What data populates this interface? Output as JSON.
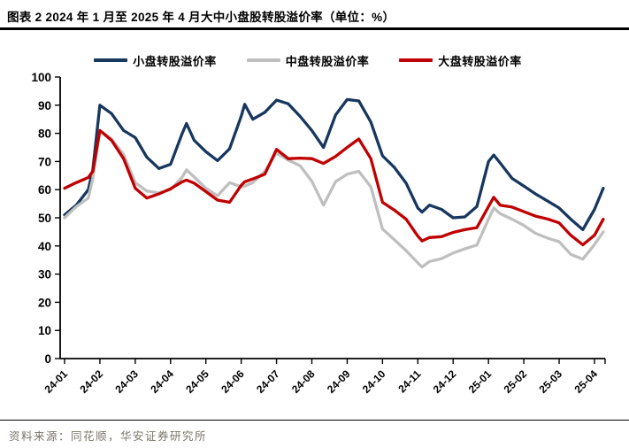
{
  "header": {
    "title": "图表 2 2024 年 1 月至 2025 年 4 月大中小盘股转股溢价率（单位：%）"
  },
  "footer": {
    "source": "资料来源：同花顺，华安证券研究所"
  },
  "chart_data": {
    "type": "line",
    "title": "2024年1月至2025年4月大中小盘股转股溢价率",
    "unit": "%",
    "grid": false,
    "legend_position": "top",
    "ylim": [
      0,
      100
    ],
    "ytick_step": 10,
    "categories": [
      "24-01",
      "24-02",
      "24-03",
      "24-04",
      "24-05",
      "24-06",
      "24-07",
      "24-08",
      "24-09",
      "24-10",
      "24-11",
      "24-12",
      "25-01",
      "25-02",
      "25-03",
      "25-04"
    ],
    "x_months": [
      0,
      0.33,
      0.67,
      0.8,
      1,
      1.33,
      1.67,
      2,
      2.33,
      2.67,
      3,
      3.33,
      3.45,
      3.67,
      4,
      4.33,
      4.67,
      5,
      5.1,
      5.33,
      5.67,
      6,
      6.33,
      6.67,
      7,
      7.33,
      7.67,
      8,
      8.33,
      8.67,
      9,
      9.33,
      9.67,
      10,
      10.12,
      10.33,
      10.67,
      11,
      11.33,
      11.67,
      12,
      12.15,
      12.33,
      12.67,
      13,
      13.33,
      13.67,
      14,
      14.33,
      14.67,
      15,
      15.25
    ],
    "series": [
      {
        "name": "小盘转股溢价率",
        "color": "#17375e",
        "values": [
          51,
          54.5,
          60,
          67,
          90,
          87,
          81,
          78.5,
          71.5,
          67.5,
          69,
          80,
          83.5,
          77.5,
          73.5,
          70.3,
          74.5,
          86,
          90.3,
          85,
          87.5,
          91.8,
          90.5,
          86,
          81,
          75,
          86.5,
          92,
          91.5,
          84,
          72,
          68,
          62.3,
          53.5,
          52,
          54.5,
          53,
          50,
          50.3,
          54,
          70,
          72.3,
          69.5,
          64,
          61.3,
          58.5,
          56,
          53.5,
          49.5,
          45.8,
          53,
          60.5
        ]
      },
      {
        "name": "中盘转股溢价率",
        "color": "#bfbfbf",
        "values": [
          50,
          54,
          57,
          64,
          81,
          78,
          72.5,
          62.5,
          59.5,
          58.8,
          60,
          64.5,
          67,
          64.5,
          60.5,
          57.8,
          62.5,
          61,
          61.3,
          62.5,
          66.5,
          73,
          70.5,
          68.5,
          63,
          54.5,
          62.8,
          65.5,
          66.5,
          61,
          46,
          42.3,
          38.3,
          34,
          32.5,
          34.5,
          35.5,
          37.5,
          39,
          40.3,
          49.5,
          53.5,
          51.5,
          49.5,
          47.3,
          44.5,
          42.8,
          41.5,
          37,
          35.3,
          40.5,
          45
        ]
      },
      {
        "name": "大盘转股溢价率",
        "color": "#c00000",
        "values": [
          60.5,
          62.5,
          64.3,
          66.5,
          81,
          77.5,
          71,
          60.5,
          57,
          58.5,
          60.3,
          62.8,
          63.4,
          62.3,
          59.3,
          56.3,
          55.5,
          61.5,
          62.8,
          63.8,
          65.5,
          74.3,
          71,
          71.2,
          71,
          69.3,
          71.8,
          75,
          78,
          71,
          55.5,
          52.8,
          49.5,
          43.5,
          41.8,
          43,
          43.3,
          44.8,
          45.8,
          46.5,
          54,
          57.3,
          54.5,
          53.8,
          52.2,
          50.6,
          49.6,
          48.2,
          43.8,
          40.4,
          43.8,
          49.5
        ]
      }
    ]
  }
}
